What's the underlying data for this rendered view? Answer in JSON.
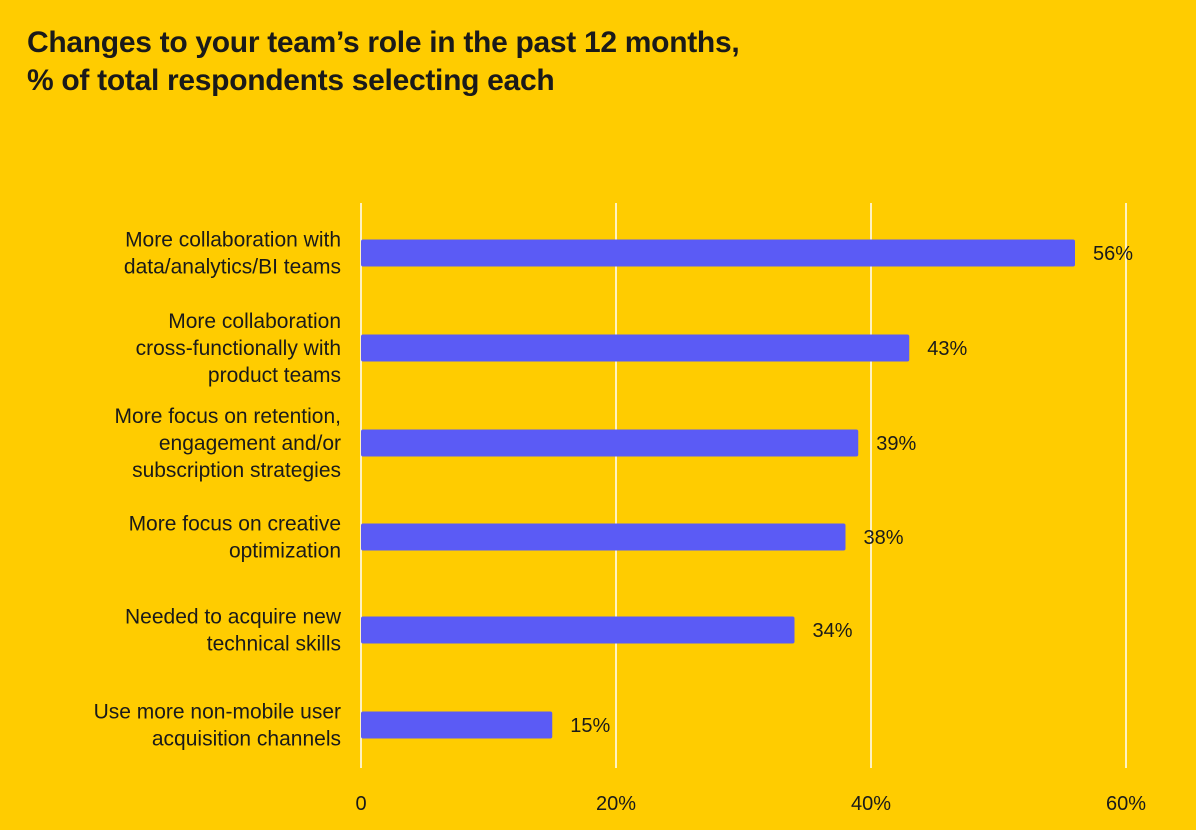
{
  "title_lines": [
    "Changes to your team’s role in the past 12 months,",
    "% of total respondents selecting each"
  ],
  "colors": {
    "background": "#FFCC00",
    "bar": "#5B5BF5",
    "grid": "#FFFFFF",
    "text": "#1a1a1a"
  },
  "chart_data": {
    "type": "bar",
    "orientation": "horizontal",
    "title": "Changes to your team’s role in the past 12 months, % of total respondents selecting each",
    "categories": [
      [
        "More collaboration with",
        "data/analytics/BI teams"
      ],
      [
        "More collaboration",
        "cross-functionally with",
        "product teams"
      ],
      [
        "More focus on retention,",
        "engagement and/or",
        "subscription strategies"
      ],
      [
        "More focus on creative",
        "optimization"
      ],
      [
        "Needed to acquire new",
        "technical skills"
      ],
      [
        "Use more non-mobile user",
        "acquisition channels"
      ]
    ],
    "values": [
      56,
      43,
      39,
      38,
      34,
      15
    ],
    "value_labels": [
      "56%",
      "43%",
      "39%",
      "38%",
      "34%",
      "15%"
    ],
    "xlim": [
      0,
      60
    ],
    "xticks": [
      0,
      20,
      40,
      60
    ],
    "xtick_labels": [
      "0",
      "20%",
      "40%",
      "60%"
    ],
    "grid": true,
    "legend": "none"
  }
}
